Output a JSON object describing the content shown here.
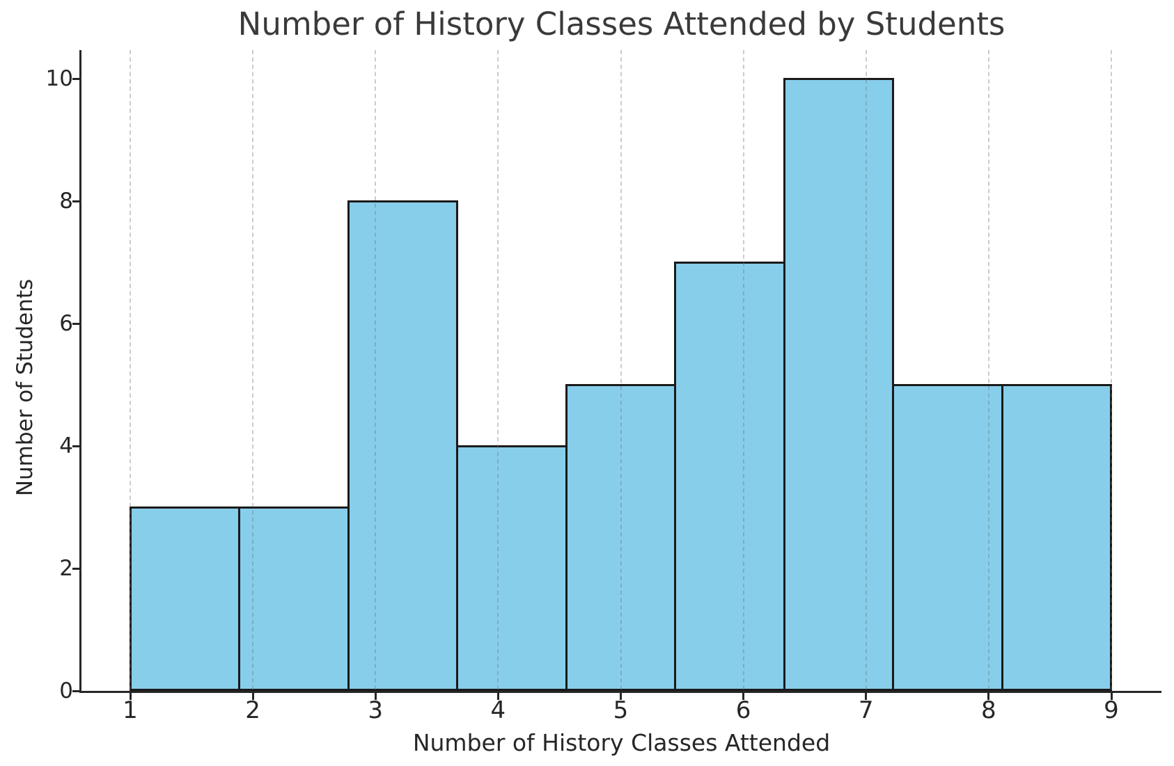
{
  "title": "Number of History Classes Attended by Students",
  "chart_data": {
    "type": "bar",
    "subtype": "histogram",
    "title": "Number of History Classes Attended by Students",
    "xlabel": "Number of History Classes Attended",
    "ylabel": "Number of Students",
    "bin_edges": [
      1,
      1.889,
      2.778,
      3.667,
      4.556,
      5.444,
      6.333,
      7.222,
      8.111,
      9
    ],
    "values": [
      3,
      3,
      8,
      4,
      5,
      7,
      10,
      5,
      5
    ],
    "x_tick_labels": [
      "1",
      "2",
      "3",
      "4",
      "5",
      "6",
      "7",
      "8",
      "9"
    ],
    "y_tick_labels": [
      "0",
      "2",
      "4",
      "6",
      "8",
      "10"
    ],
    "y_ticks": [
      0,
      2,
      4,
      6,
      8,
      10
    ],
    "x_ticks": [
      1,
      2,
      3,
      4,
      5,
      6,
      7,
      8,
      9
    ],
    "xlim": [
      0.6,
      9.41
    ],
    "ylim": [
      0,
      10.47
    ],
    "grid": "vertical-dashed-over-bars",
    "bar_fill_color": "#87CEEB",
    "bar_edge_color": "#1a1a1a",
    "grid_color": "#d4d4d4",
    "spine_color": "#262626",
    "text_color": "#262626",
    "title_color": "#3a3a3a",
    "legend": "none"
  }
}
